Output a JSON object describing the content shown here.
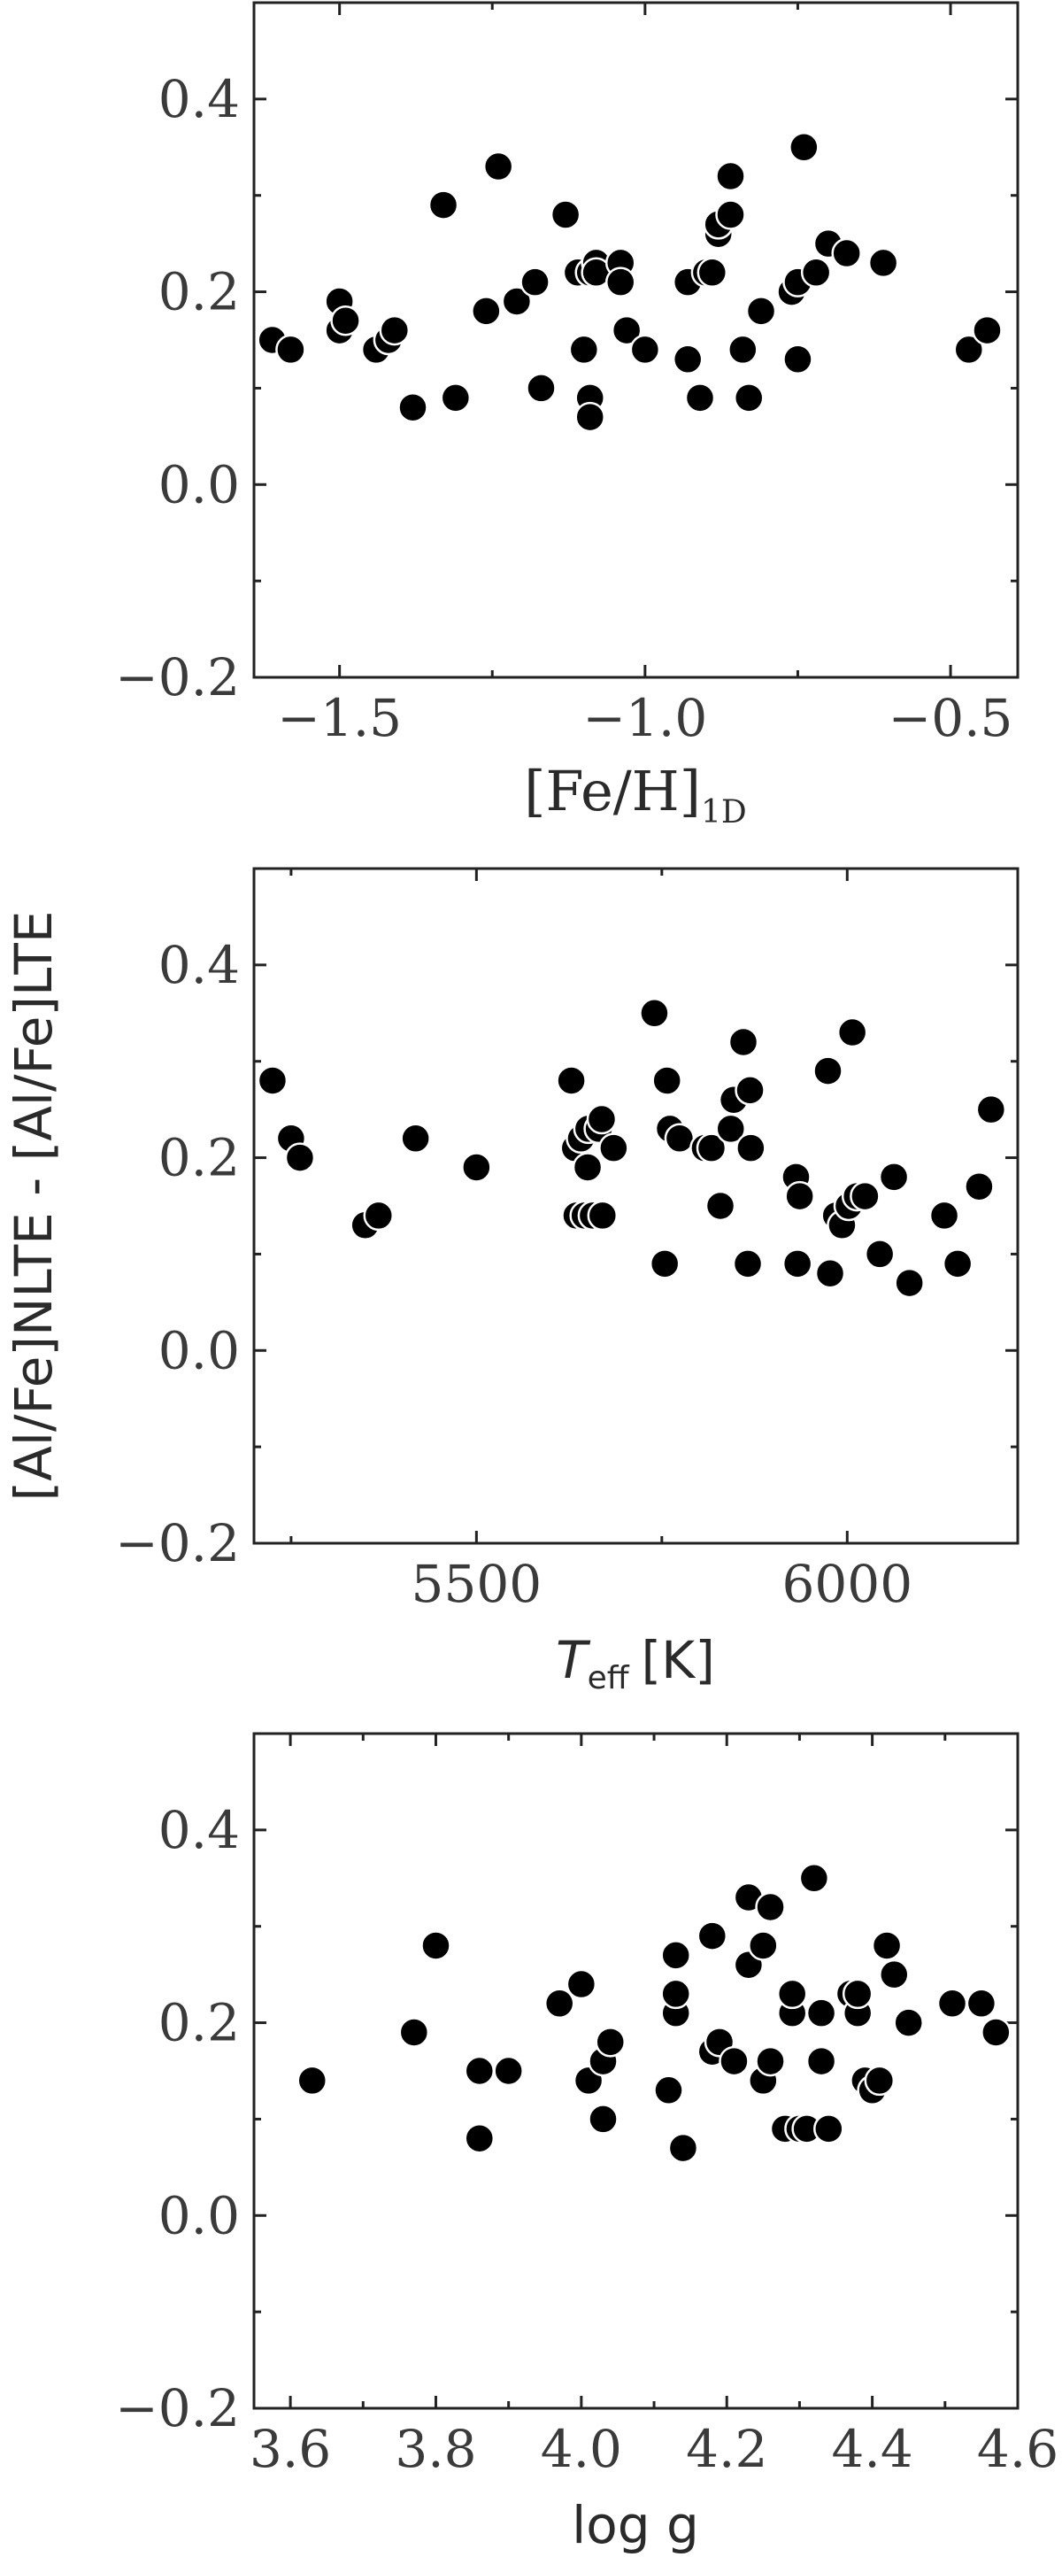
{
  "chart_data": [
    {
      "type": "scatter",
      "xlabel": "[Fe/H]",
      "xlabel_sub": "1D",
      "xlim": [
        -1.64,
        -0.39
      ],
      "ylim": [
        -0.2,
        0.5
      ],
      "xticks": [
        -1.5,
        -1.0,
        -0.5
      ],
      "xtick_labels": [
        "−1.5",
        "−1.0",
        "−0.5"
      ],
      "yticks": [
        -0.2,
        0.0,
        0.2,
        0.4
      ],
      "ytick_labels": [
        "−0.2",
        "0.0",
        "0.2",
        "0.4"
      ],
      "grid": false,
      "points": {
        "x": [
          -1.61,
          -1.58,
          -1.5,
          -1.5,
          -1.49,
          -1.44,
          -1.42,
          -1.41,
          -1.38,
          -1.33,
          -1.31,
          -1.26,
          -1.24,
          -1.21,
          -1.18,
          -1.17,
          -1.13,
          -1.11,
          -1.1,
          -1.09,
          -1.09,
          -1.09,
          -1.08,
          -1.08,
          -1.04,
          -1.04,
          -1.03,
          -1.0,
          -0.93,
          -0.93,
          -0.91,
          -0.9,
          -0.89,
          -0.88,
          -0.88,
          -0.86,
          -0.86,
          -0.84,
          -0.83,
          -0.81,
          -0.76,
          -0.75,
          -0.75,
          -0.74,
          -0.72,
          -0.7,
          -0.67,
          -0.61,
          -0.47,
          -0.44
        ],
        "y": [
          0.15,
          0.14,
          0.19,
          0.16,
          0.17,
          0.14,
          0.15,
          0.16,
          0.08,
          0.29,
          0.09,
          0.18,
          0.33,
          0.19,
          0.21,
          0.1,
          0.28,
          0.22,
          0.14,
          0.22,
          0.09,
          0.07,
          0.23,
          0.22,
          0.23,
          0.21,
          0.16,
          0.14,
          0.21,
          0.13,
          0.09,
          0.22,
          0.22,
          0.26,
          0.27,
          0.28,
          0.32,
          0.14,
          0.09,
          0.18,
          0.2,
          0.13,
          0.21,
          0.35,
          0.22,
          0.25,
          0.24,
          0.23,
          0.14,
          0.16
        ]
      }
    },
    {
      "type": "scatter",
      "ylabel": "[Al/Fe]NLTE - [Al/Fe]LTE",
      "xlabel": "T",
      "xlabel_sub": "eff",
      "xlabel_unit": "[K]",
      "xlim": [
        5200,
        6230
      ],
      "ylim": [
        -0.2,
        0.5
      ],
      "xticks": [
        5500,
        6000
      ],
      "xtick_labels": [
        "5500",
        "6000"
      ],
      "yticks": [
        -0.2,
        0.0,
        0.2,
        0.4
      ],
      "ytick_labels": [
        "−0.2",
        "0.0",
        "0.2",
        "0.4"
      ],
      "grid": false,
      "points": {
        "x": [
          5225,
          5250,
          5262,
          5350,
          5368,
          5418,
          5500,
          5628,
          5633,
          5635,
          5641,
          5646,
          5650,
          5651,
          5657,
          5665,
          5669,
          5670,
          5685,
          5740,
          5754,
          5757,
          5761,
          5774,
          5808,
          5817,
          5829,
          5843,
          5847,
          5860,
          5866,
          5869,
          5870,
          5931,
          5933,
          5936,
          5974,
          5977,
          5985,
          5993,
          6002,
          6007,
          6013,
          6024,
          6044,
          6063,
          6084,
          6131,
          6149,
          6178,
          6194
        ],
        "y": [
          0.28,
          0.22,
          0.2,
          0.13,
          0.14,
          0.22,
          0.19,
          0.28,
          0.21,
          0.14,
          0.22,
          0.14,
          0.19,
          0.23,
          0.14,
          0.23,
          0.24,
          0.14,
          0.21,
          0.35,
          0.09,
          0.28,
          0.23,
          0.22,
          0.21,
          0.21,
          0.15,
          0.23,
          0.26,
          0.32,
          0.09,
          0.27,
          0.21,
          0.18,
          0.09,
          0.16,
          0.29,
          0.08,
          0.14,
          0.13,
          0.15,
          0.33,
          0.16,
          0.16,
          0.1,
          0.18,
          0.07,
          0.14,
          0.09,
          0.17,
          0.25
        ]
      }
    },
    {
      "type": "scatter",
      "xlabel": "log g",
      "xlim": [
        3.55,
        4.6
      ],
      "ylim": [
        -0.2,
        0.5
      ],
      "xticks": [
        3.6,
        3.8,
        4.0,
        4.2,
        4.4,
        4.6
      ],
      "xtick_labels": [
        "3.6",
        "3.8",
        "4.0",
        "4.2",
        "4.4",
        "4.6"
      ],
      "yticks": [
        -0.2,
        0.0,
        0.2,
        0.4
      ],
      "ytick_labels": [
        "−0.2",
        "0.0",
        "0.2",
        "0.4"
      ],
      "grid": false,
      "points": {
        "x": [
          3.63,
          3.77,
          3.8,
          3.86,
          3.86,
          3.9,
          3.97,
          4.0,
          4.01,
          4.03,
          4.03,
          4.04,
          4.12,
          4.13,
          4.13,
          4.13,
          4.14,
          4.18,
          4.18,
          4.19,
          4.21,
          4.23,
          4.23,
          4.25,
          4.25,
          4.26,
          4.26,
          4.28,
          4.29,
          4.29,
          4.3,
          4.31,
          4.32,
          4.33,
          4.33,
          4.34,
          4.37,
          4.38,
          4.38,
          4.39,
          4.4,
          4.41,
          4.42,
          4.43,
          4.45,
          4.51,
          4.55,
          4.57
        ],
        "y": [
          0.14,
          0.19,
          0.28,
          0.15,
          0.08,
          0.15,
          0.22,
          0.24,
          0.14,
          0.16,
          0.1,
          0.18,
          0.13,
          0.27,
          0.21,
          0.23,
          0.07,
          0.29,
          0.17,
          0.18,
          0.16,
          0.33,
          0.26,
          0.28,
          0.14,
          0.32,
          0.16,
          0.09,
          0.21,
          0.23,
          0.09,
          0.09,
          0.35,
          0.16,
          0.21,
          0.09,
          0.23,
          0.21,
          0.23,
          0.14,
          0.13,
          0.14,
          0.28,
          0.25,
          0.2,
          0.22,
          0.22,
          0.19
        ]
      }
    }
  ]
}
